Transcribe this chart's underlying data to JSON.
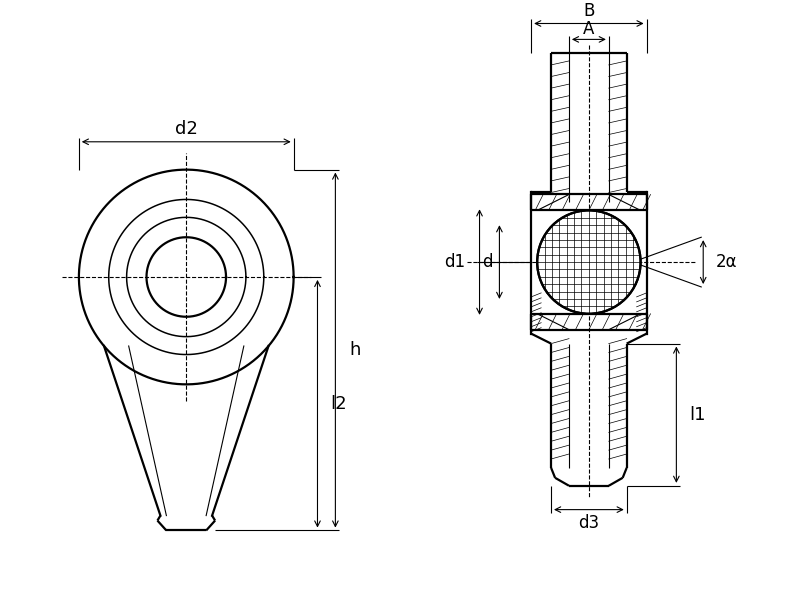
{
  "bg_color": "#ffffff",
  "line_color": "#000000",
  "figsize": [
    8.0,
    6.15
  ],
  "dpi": 100,
  "labels": {
    "d2": "d2",
    "h": "h",
    "l2": "l2",
    "B": "B",
    "A": "A",
    "d1": "d1",
    "d": "d",
    "l1": "l1",
    "d3": "d3",
    "alpha": "2α"
  },
  "lw_main": 1.6,
  "lw_thin": 0.8,
  "lw_dim": 0.8,
  "lw_hatch": 0.5
}
